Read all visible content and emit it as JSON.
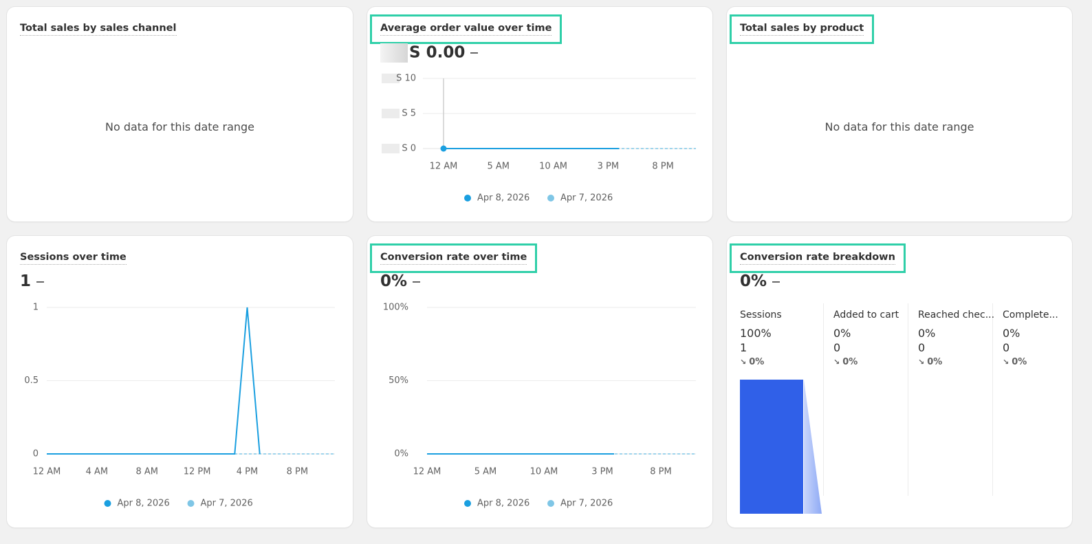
{
  "cards": [
    {
      "title": "Total sales by sales channel",
      "empty_message": "No data for this date range",
      "highlighted": false
    },
    {
      "title": "Average order value over time",
      "value": "S 0.00",
      "highlighted": true,
      "chart": {
        "type": "line",
        "x": [
          0,
          1,
          2,
          3,
          4,
          5,
          6,
          7,
          8,
          9,
          10,
          11,
          12,
          13,
          14,
          15,
          16,
          17,
          18,
          19,
          20,
          21,
          22,
          23
        ],
        "xlim": [
          0,
          23
        ],
        "xticks": [
          {
            "value": 0,
            "label": "12 AM"
          },
          {
            "value": 5,
            "label": "5 AM"
          },
          {
            "value": 10,
            "label": "10 AM"
          },
          {
            "value": 15,
            "label": "3 PM"
          },
          {
            "value": 20,
            "label": "8 PM"
          }
        ],
        "ylim": [
          0,
          10
        ],
        "yticks": [
          {
            "value": 0,
            "label": "S 0"
          },
          {
            "value": 5,
            "label": "S 5"
          },
          {
            "value": 10,
            "label": "S 10"
          }
        ],
        "grid": true,
        "series": [
          {
            "name": "Apr 8, 2026",
            "color": "#1a9fe0",
            "values": [
              0,
              0,
              0,
              0,
              0,
              0,
              0,
              0,
              0,
              0,
              0,
              0,
              0,
              0,
              0,
              0,
              0,
              null,
              null,
              null,
              null,
              null,
              null,
              null
            ]
          },
          {
            "name": "Apr 7, 2026",
            "color": "#7fc6e6",
            "values": [
              0,
              0,
              0,
              0,
              0,
              0,
              0,
              0,
              0,
              0,
              0,
              0,
              0,
              0,
              0,
              0,
              0,
              0,
              0,
              0,
              0,
              0,
              0,
              0
            ]
          }
        ]
      }
    },
    {
      "title": "Total sales by product",
      "empty_message": "No data for this date range",
      "highlighted": true
    },
    {
      "title": "Sessions over time",
      "value": "1",
      "highlighted": false,
      "chart": {
        "type": "line",
        "x": [
          0,
          1,
          2,
          3,
          4,
          5,
          6,
          7,
          8,
          9,
          10,
          11,
          12,
          13,
          14,
          15,
          16,
          17,
          18,
          19,
          20,
          21,
          22,
          23
        ],
        "xlim": [
          0,
          23
        ],
        "xticks": [
          {
            "value": 0,
            "label": "12 AM"
          },
          {
            "value": 4,
            "label": "4 AM"
          },
          {
            "value": 8,
            "label": "8 AM"
          },
          {
            "value": 12,
            "label": "12 PM"
          },
          {
            "value": 16,
            "label": "4 PM"
          },
          {
            "value": 20,
            "label": "8 PM"
          }
        ],
        "ylim": [
          0,
          1
        ],
        "yticks": [
          0,
          0.5,
          1
        ],
        "grid": true,
        "series": [
          {
            "name": "Apr 8, 2026",
            "color": "#1a9fe0",
            "values": [
              0,
              0,
              0,
              0,
              0,
              0,
              0,
              0,
              0,
              0,
              0,
              0,
              0,
              0,
              0,
              0,
              1,
              0,
              null,
              null,
              null,
              null,
              null,
              null
            ]
          },
          {
            "name": "Apr 7, 2026",
            "color": "#7fc6e6",
            "values": [
              0,
              0,
              0,
              0,
              0,
              0,
              0,
              0,
              0,
              0,
              0,
              0,
              0,
              0,
              0,
              0,
              0,
              0,
              0,
              0,
              0,
              0,
              0,
              0
            ]
          }
        ]
      }
    },
    {
      "title": "Conversion rate over time",
      "value": "0%",
      "highlighted": true,
      "chart": {
        "type": "line",
        "x": [
          0,
          1,
          2,
          3,
          4,
          5,
          6,
          7,
          8,
          9,
          10,
          11,
          12,
          13,
          14,
          15,
          16,
          17,
          18,
          19,
          20,
          21,
          22,
          23
        ],
        "xlim": [
          0,
          23
        ],
        "xticks": [
          {
            "value": 0,
            "label": "12 AM"
          },
          {
            "value": 5,
            "label": "5 AM"
          },
          {
            "value": 10,
            "label": "10 AM"
          },
          {
            "value": 15,
            "label": "3 PM"
          },
          {
            "value": 20,
            "label": "8 PM"
          }
        ],
        "ylim": [
          0,
          100
        ],
        "yticks": [
          {
            "value": 0,
            "label": "0%"
          },
          {
            "value": 50,
            "label": "50%"
          },
          {
            "value": 100,
            "label": "100%"
          }
        ],
        "grid": true,
        "series": [
          {
            "name": "Apr 8, 2026",
            "color": "#1a9fe0",
            "values": [
              0,
              0,
              0,
              0,
              0,
              0,
              0,
              0,
              0,
              0,
              0,
              0,
              0,
              0,
              0,
              0,
              0,
              null,
              null,
              null,
              null,
              null,
              null,
              null
            ]
          },
          {
            "name": "Apr 7, 2026",
            "color": "#7fc6e6",
            "values": [
              0,
              0,
              0,
              0,
              0,
              0,
              0,
              0,
              0,
              0,
              0,
              0,
              0,
              0,
              0,
              0,
              0,
              0,
              0,
              0,
              0,
              0,
              0,
              0
            ]
          }
        ]
      }
    },
    {
      "title": "Conversion rate breakdown",
      "value": "0%",
      "highlighted": true,
      "stages": [
        {
          "name": "Sessions",
          "value": 100,
          "value_label": "100%",
          "count": "1",
          "change": "0%"
        },
        {
          "name": "Added to cart",
          "value": 0,
          "value_label": "0%",
          "count": "0",
          "change": "0%"
        },
        {
          "name": "Reached chec...",
          "value": 0,
          "value_label": "0%",
          "count": "0",
          "change": "0%"
        },
        {
          "name": "Complete...",
          "value": 0,
          "value_label": "0%",
          "count": "0",
          "change": "0%"
        }
      ],
      "bar_color": "#3060e8"
    }
  ]
}
